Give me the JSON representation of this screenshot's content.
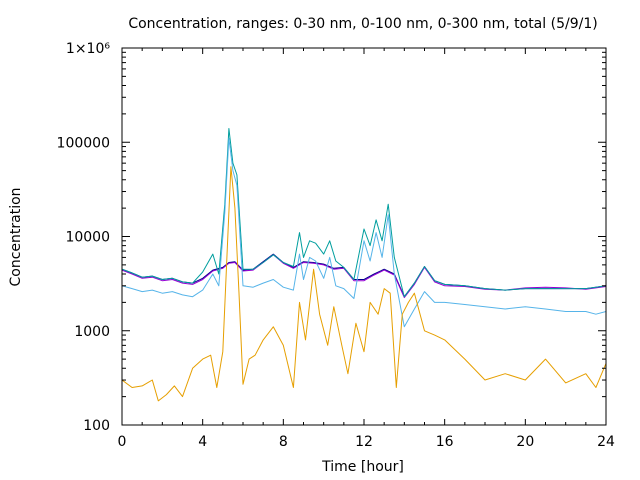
{
  "chart_data": {
    "type": "line",
    "title": "Concentration, ranges: 0-30 nm, 0-100 nm, 0-300 nm, total (5/9/1)",
    "xlabel": "Time [hour]",
    "ylabel": "Concentration",
    "xlim": [
      0,
      24
    ],
    "ylim": [
      100,
      1000000
    ],
    "y_scale": "log",
    "grid": false,
    "x_ticks": [
      0,
      4,
      8,
      12,
      16,
      20,
      24
    ],
    "x_tick_labels": [
      "0",
      "4",
      "8",
      "12",
      "16",
      "20",
      "24"
    ],
    "y_ticks": [
      100,
      1000,
      10000,
      100000,
      1000000
    ],
    "y_tick_labels": [
      "100",
      "1000",
      "10000",
      "100000",
      "1×10⁶"
    ],
    "series": [
      {
        "color": "#00008b",
        "x": [
          0,
          0.5,
          1,
          1.5,
          2,
          2.5,
          3,
          3.5,
          4,
          4.5,
          5,
          5.3,
          5.6,
          6,
          6.5,
          7,
          7.5,
          8,
          8.5,
          9,
          9.5,
          10,
          10.5,
          11,
          11.5,
          12,
          12.5,
          13,
          13.5,
          14,
          14.5,
          15,
          15.5,
          16,
          17,
          18,
          19,
          20,
          21,
          22,
          23,
          23.5,
          24
        ],
        "y": [
          4500,
          4100,
          3700,
          3800,
          3500,
          3600,
          3300,
          3200,
          3600,
          4400,
          4700,
          5300,
          5400,
          4400,
          4500,
          5400,
          6500,
          5300,
          4700,
          5400,
          5300,
          5100,
          4600,
          4700,
          3500,
          3500,
          4000,
          4500,
          4000,
          2300,
          3200,
          4800,
          3400,
          3100,
          3000,
          2800,
          2700,
          2800,
          2800,
          2800,
          2800,
          2900,
          3000
        ]
      },
      {
        "color": "#9400d3",
        "x": [
          0,
          0.5,
          1,
          1.5,
          2,
          2.5,
          3,
          3.5,
          4,
          4.5,
          5,
          5.3,
          5.6,
          6,
          6.5,
          7,
          7.5,
          8,
          8.5,
          9,
          9.5,
          10,
          10.5,
          11,
          11.5,
          12,
          12.5,
          13,
          13.5,
          14,
          14.5,
          15,
          15.5,
          16,
          17,
          18,
          19,
          20,
          21,
          22,
          23,
          23.5,
          24
        ],
        "y": [
          4400,
          4000,
          3600,
          3700,
          3400,
          3500,
          3200,
          3100,
          3500,
          4300,
          4600,
          5200,
          5300,
          4300,
          4400,
          5300,
          6400,
          5200,
          4600,
          5300,
          5200,
          5000,
          4500,
          4600,
          3400,
          3400,
          3900,
          4400,
          3900,
          2250,
          3100,
          4700,
          3300,
          3000,
          2950,
          2750,
          2700,
          2850,
          2900,
          2850,
          2750,
          2850,
          2950
        ]
      },
      {
        "color": "#009e9e",
        "x": [
          0,
          0.5,
          1,
          1.5,
          2,
          2.5,
          3,
          3.5,
          4,
          4.5,
          4.8,
          5.1,
          5.3,
          5.5,
          5.7,
          6,
          6.5,
          7,
          7.5,
          8,
          8.5,
          8.8,
          9,
          9.3,
          9.6,
          10,
          10.3,
          10.6,
          11,
          11.5,
          12,
          12.3,
          12.6,
          12.9,
          13.2,
          13.5,
          14,
          14.5,
          15,
          15.5,
          16,
          17,
          18,
          19,
          20,
          21,
          22,
          23,
          23.5,
          24
        ],
        "y": [
          4500,
          4100,
          3700,
          3800,
          3500,
          3600,
          3300,
          3200,
          4200,
          6500,
          4000,
          22000,
          140000,
          60000,
          45000,
          4500,
          4500,
          5300,
          6400,
          5300,
          4800,
          11000,
          6000,
          9000,
          8500,
          6500,
          9000,
          5500,
          4700,
          3500,
          12000,
          8000,
          15000,
          9000,
          22000,
          6000,
          2300,
          3200,
          4800,
          3400,
          3100,
          3000,
          2800,
          2700,
          2800,
          2800,
          2800,
          2800,
          2900,
          3000
        ]
      },
      {
        "color": "#56b4e9",
        "x": [
          0,
          0.5,
          1,
          1.5,
          2,
          2.5,
          3,
          3.5,
          4,
          4.5,
          4.8,
          5.1,
          5.3,
          5.5,
          5.7,
          6,
          6.5,
          7,
          7.5,
          8,
          8.5,
          8.8,
          9,
          9.3,
          9.6,
          10,
          10.3,
          10.6,
          11,
          11.5,
          12,
          12.3,
          12.6,
          12.9,
          13.2,
          13.5,
          14,
          14.5,
          15,
          15.5,
          16,
          17,
          18,
          19,
          20,
          21,
          22,
          23,
          23.5,
          24
        ],
        "y": [
          3000,
          2800,
          2600,
          2700,
          2500,
          2600,
          2400,
          2300,
          2700,
          4000,
          3000,
          18000,
          110000,
          50000,
          35000,
          3000,
          2900,
          3200,
          3500,
          2900,
          2700,
          6500,
          3500,
          6000,
          5500,
          3600,
          6000,
          3000,
          2800,
          2200,
          9000,
          5500,
          11000,
          6000,
          17000,
          4000,
          1100,
          1700,
          2600,
          2000,
          2000,
          1900,
          1800,
          1700,
          1800,
          1700,
          1600,
          1600,
          1500,
          1600
        ]
      },
      {
        "color": "#e69f00",
        "x": [
          0,
          0.5,
          1,
          1.5,
          1.8,
          2.2,
          2.6,
          3,
          3.5,
          4,
          4.4,
          4.7,
          5,
          5.2,
          5.4,
          5.6,
          5.8,
          6,
          6.3,
          6.6,
          7,
          7.5,
          8,
          8.5,
          8.8,
          9.1,
          9.5,
          9.8,
          10.2,
          10.5,
          10.9,
          11.2,
          11.6,
          12,
          12.3,
          12.7,
          13,
          13.3,
          13.6,
          13.9,
          14.2,
          14.5,
          15,
          15.5,
          16,
          17,
          18,
          19,
          20,
          21,
          22,
          23,
          23.5,
          24
        ],
        "y": [
          300,
          250,
          260,
          300,
          180,
          210,
          260,
          200,
          400,
          500,
          550,
          250,
          600,
          6000,
          55000,
          20000,
          2500,
          270,
          500,
          550,
          800,
          1100,
          700,
          250,
          2000,
          800,
          4500,
          1500,
          700,
          1800,
          700,
          350,
          1200,
          600,
          2000,
          1500,
          2800,
          2500,
          250,
          1500,
          2000,
          2500,
          1000,
          900,
          800,
          500,
          300,
          350,
          300,
          500,
          280,
          350,
          250,
          450
        ]
      }
    ]
  }
}
